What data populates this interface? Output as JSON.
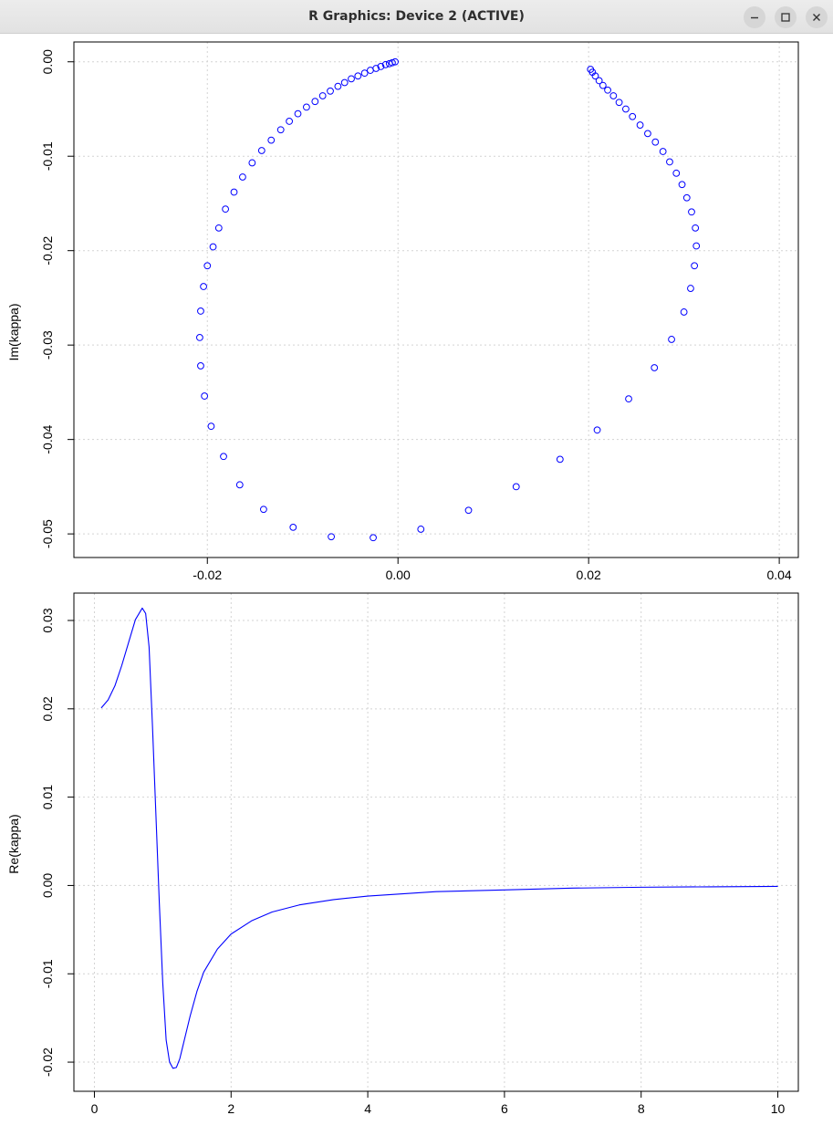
{
  "window": {
    "title": "R Graphics: Device 2 (ACTIVE)",
    "buttons": {
      "minimize": "minimize-icon",
      "maximize": "maximize-icon",
      "close": "close-icon"
    }
  },
  "colors": {
    "series": "#0000ff",
    "grid": "#d3d3d3",
    "axis": "#000000"
  },
  "chart_data": [
    {
      "type": "scatter",
      "title": "",
      "xlabel": "",
      "ylabel": "Im(kappa)",
      "xlim": [
        -0.034,
        0.042
      ],
      "ylim": [
        -0.0525,
        0.0021
      ],
      "grid": true,
      "marker": "open-circle",
      "x_ticks": [
        -0.02,
        0.0,
        0.02,
        0.04
      ],
      "x_tick_labels": [
        "-0.02",
        "0.00",
        "0.02",
        "0.04"
      ],
      "y_ticks": [
        0.0,
        -0.01,
        -0.02,
        -0.03,
        -0.04,
        -0.05
      ],
      "y_tick_labels": [
        "0.00",
        "-0.01",
        "-0.02",
        "-0.03",
        "-0.04",
        "-0.05"
      ],
      "x": [
        -0.0003,
        -0.0006,
        -0.0009,
        -0.0013,
        -0.0018,
        -0.0023,
        -0.0029,
        -0.0035,
        -0.0042,
        -0.0049,
        -0.0056,
        -0.0063,
        -0.0071,
        -0.0079,
        -0.0087,
        -0.0096,
        -0.0105,
        -0.0114,
        -0.0123,
        -0.0133,
        -0.0143,
        -0.0153,
        -0.0163,
        -0.0172,
        -0.0181,
        -0.0188,
        -0.0194,
        -0.02,
        -0.0204,
        -0.0207,
        -0.0208,
        -0.0207,
        -0.0203,
        -0.0196,
        -0.0183,
        -0.0166,
        -0.0141,
        -0.011,
        -0.007,
        -0.0026,
        0.0024,
        0.0074,
        0.0124,
        0.017,
        0.0209,
        0.0242,
        0.0269,
        0.0287,
        0.03,
        0.0307,
        0.0311,
        0.0313,
        0.0312,
        0.0308,
        0.0303,
        0.0298,
        0.0292,
        0.0285,
        0.0278,
        0.027,
        0.0262,
        0.0254,
        0.0246,
        0.0239,
        0.0232,
        0.0226,
        0.022,
        0.0215,
        0.0211,
        0.0207,
        0.0204,
        0.0202
      ],
      "y": [
        0.0,
        -0.0001,
        -0.0002,
        -0.0003,
        -0.0005,
        -0.0007,
        -0.0009,
        -0.0012,
        -0.0015,
        -0.0018,
        -0.0022,
        -0.0026,
        -0.0031,
        -0.0036,
        -0.0042,
        -0.0048,
        -0.0055,
        -0.0063,
        -0.0072,
        -0.0083,
        -0.0094,
        -0.0107,
        -0.0122,
        -0.0138,
        -0.0156,
        -0.0176,
        -0.0196,
        -0.0216,
        -0.0238,
        -0.0264,
        -0.0292,
        -0.0322,
        -0.0354,
        -0.0386,
        -0.0418,
        -0.0448,
        -0.0474,
        -0.0493,
        -0.0503,
        -0.0504,
        -0.0495,
        -0.0475,
        -0.045,
        -0.0421,
        -0.039,
        -0.0357,
        -0.0324,
        -0.0294,
        -0.0265,
        -0.024,
        -0.0216,
        -0.0195,
        -0.0176,
        -0.0159,
        -0.0144,
        -0.013,
        -0.0118,
        -0.0106,
        -0.0095,
        -0.0085,
        -0.0076,
        -0.0067,
        -0.0058,
        -0.005,
        -0.0043,
        -0.0036,
        -0.003,
        -0.0025,
        -0.002,
        -0.0015,
        -0.0011,
        -0.0008
      ]
    },
    {
      "type": "line",
      "title": "",
      "xlabel": "",
      "ylabel": "Re(kappa)",
      "xlim": [
        -0.3,
        10.3
      ],
      "ylim": [
        -0.0233,
        0.0331
      ],
      "grid": true,
      "x_ticks": [
        0,
        2,
        4,
        6,
        8,
        10
      ],
      "x_tick_labels": [
        "0",
        "2",
        "4",
        "6",
        "8",
        "10"
      ],
      "y_ticks": [
        0.03,
        0.02,
        0.01,
        0.0,
        -0.01,
        -0.02
      ],
      "y_tick_labels": [
        "0.03",
        "0.02",
        "0.01",
        "0.00",
        "-0.01",
        "-0.02"
      ],
      "x": [
        0.1,
        0.2,
        0.3,
        0.4,
        0.5,
        0.6,
        0.7,
        0.75,
        0.8,
        0.85,
        0.9,
        0.95,
        1.0,
        1.05,
        1.1,
        1.15,
        1.2,
        1.25,
        1.3,
        1.4,
        1.5,
        1.6,
        1.8,
        2.0,
        2.3,
        2.6,
        3.0,
        3.5,
        4.0,
        5.0,
        6.0,
        7.0,
        8.0,
        9.0,
        10.0
      ],
      "y": [
        0.0201,
        0.021,
        0.0226,
        0.0249,
        0.0275,
        0.0301,
        0.0314,
        0.0308,
        0.027,
        0.018,
        0.008,
        -0.002,
        -0.011,
        -0.0175,
        -0.02,
        -0.0207,
        -0.0206,
        -0.0196,
        -0.018,
        -0.0148,
        -0.012,
        -0.0098,
        -0.0072,
        -0.0055,
        -0.004,
        -0.003,
        -0.0022,
        -0.0016,
        -0.0012,
        -0.0007,
        -0.0005,
        -0.0003,
        -0.0002,
        -0.00015,
        -0.0001
      ]
    }
  ]
}
